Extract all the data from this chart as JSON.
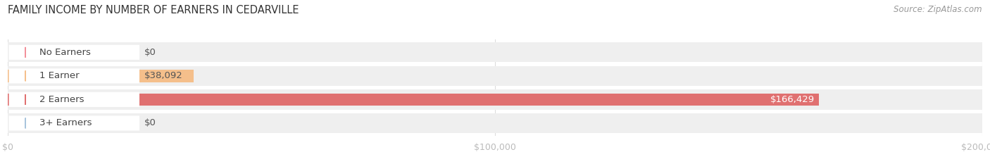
{
  "title": "FAMILY INCOME BY NUMBER OF EARNERS IN CEDARVILLE",
  "source": "Source: ZipAtlas.com",
  "categories": [
    "No Earners",
    "1 Earner",
    "2 Earners",
    "3+ Earners"
  ],
  "values": [
    0,
    38092,
    166429,
    0
  ],
  "bar_colors": [
    "#f2919b",
    "#f5bf8b",
    "#e07070",
    "#a8c4dc"
  ],
  "xlim": [
    0,
    200000
  ],
  "xticks": [
    0,
    100000,
    200000
  ],
  "xtick_labels": [
    "$0",
    "$100,000",
    "$200,000"
  ],
  "value_labels": [
    "$0",
    "$38,092",
    "$166,429",
    "$0"
  ],
  "value_label_inside": [
    false,
    false,
    true,
    false
  ],
  "title_fontsize": 10.5,
  "label_fontsize": 9.5,
  "tick_fontsize": 9,
  "source_fontsize": 8.5,
  "bar_height": 0.52,
  "row_bg_color": "#efefef",
  "figsize": [
    14.06,
    2.33
  ],
  "dpi": 100
}
